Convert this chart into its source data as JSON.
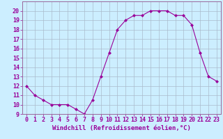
{
  "x": [
    0,
    1,
    2,
    3,
    4,
    5,
    6,
    7,
    8,
    9,
    10,
    11,
    12,
    13,
    14,
    15,
    16,
    17,
    18,
    19,
    20,
    21,
    22,
    23
  ],
  "y": [
    12.0,
    11.0,
    10.5,
    10.0,
    10.0,
    10.0,
    9.5,
    9.0,
    10.5,
    13.0,
    15.5,
    18.0,
    19.0,
    19.5,
    19.5,
    20.0,
    20.0,
    20.0,
    19.5,
    19.5,
    18.5,
    15.5,
    13.0,
    12.5
  ],
  "line_color": "#990099",
  "marker": "D",
  "marker_size": 2,
  "bg_color": "#cceeff",
  "grid_color": "#aabbcc",
  "xlabel": "Windchill (Refroidissement éolien,°C)",
  "xlim": [
    -0.5,
    23.5
  ],
  "ylim": [
    9,
    21
  ],
  "yticks": [
    9,
    10,
    11,
    12,
    13,
    14,
    15,
    16,
    17,
    18,
    19,
    20
  ],
  "xticks": [
    0,
    1,
    2,
    3,
    4,
    5,
    6,
    7,
    8,
    9,
    10,
    11,
    12,
    13,
    14,
    15,
    16,
    17,
    18,
    19,
    20,
    21,
    22,
    23
  ],
  "xlabel_fontsize": 6.5,
  "tick_fontsize": 6,
  "label_color": "#990099",
  "tick_color": "#990099",
  "spine_color": "#996699"
}
